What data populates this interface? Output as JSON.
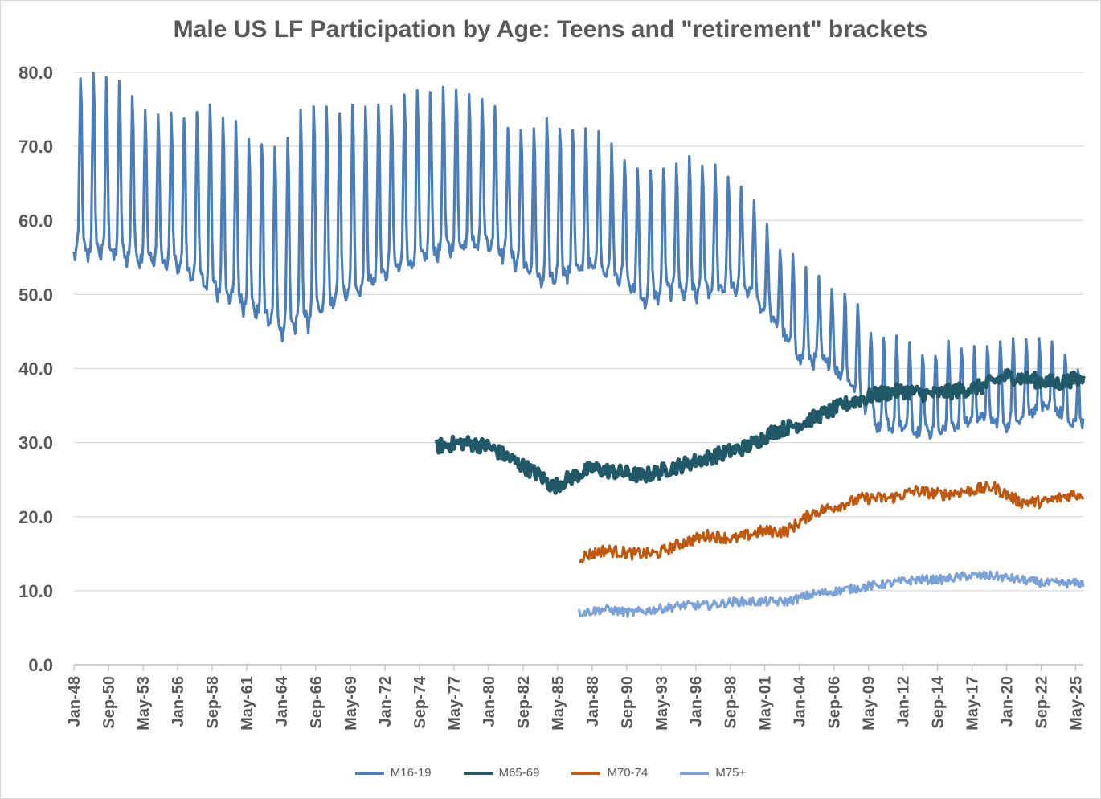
{
  "chart_data": {
    "type": "line",
    "title": "Male US LF Participation by Age: Teens and \"retirement\" brackets",
    "xlabel": "",
    "ylabel": "",
    "ylim": [
      0,
      80
    ],
    "y_ticks": [
      "0.0",
      "10.0",
      "20.0",
      "30.0",
      "40.0",
      "50.0",
      "60.0",
      "70.0",
      "80.0"
    ],
    "x_range": [
      "1948-01",
      "2025-12"
    ],
    "x_tick_labels": [
      "Jan-48",
      "Sep-50",
      "May-53",
      "Jan-56",
      "Sep-58",
      "May-61",
      "Jan-64",
      "Sep-66",
      "May-69",
      "Jan-72",
      "Sep-74",
      "May-77",
      "Jan-80",
      "Sep-82",
      "May-85",
      "Jan-88",
      "Sep-90",
      "May-93",
      "Jan-96",
      "Sep-98",
      "May-01",
      "Jan-04",
      "Sep-06",
      "May-09",
      "Jan-12",
      "Sep-14",
      "May-17",
      "Jan-20",
      "Sep-22",
      "May-25"
    ],
    "grid": true,
    "legend_position": "bottom",
    "series": [
      {
        "name": "M16-19",
        "color": "#4a7ebb",
        "start": "1948-01",
        "seasonal_amplitude_note": "strong summer peaks",
        "years": [
          1948,
          1950,
          1952,
          1954,
          1956,
          1958,
          1960,
          1962,
          1964,
          1966,
          1968,
          1970,
          1972,
          1974,
          1976,
          1978,
          1980,
          1982,
          1984,
          1986,
          1988,
          1990,
          1992,
          1994,
          1996,
          1998,
          2000,
          2002,
          2004,
          2006,
          2008,
          2010,
          2012,
          2014,
          2016,
          2018,
          2020,
          2022,
          2024,
          2025
        ],
        "trough": [
          55.0,
          55.0,
          54.5,
          54.0,
          53.0,
          50.5,
          49.0,
          47.0,
          44.5,
          45.5,
          48.0,
          50.0,
          52.0,
          53.5,
          55.0,
          56.0,
          56.0,
          54.0,
          51.0,
          52.0,
          53.0,
          52.0,
          48.5,
          50.0,
          49.5,
          50.0,
          50.0,
          46.0,
          41.0,
          40.5,
          37.5,
          32.0,
          31.5,
          31.0,
          32.0,
          33.0,
          32.0,
          34.0,
          34.0,
          32.0
        ],
        "peak": [
          80.0,
          79.0,
          78.0,
          74.0,
          74.0,
          76.0,
          73.5,
          71.0,
          69.0,
          76.0,
          75.0,
          75.0,
          75.5,
          77.0,
          77.0,
          78.0,
          77.0,
          72.0,
          73.0,
          73.0,
          72.0,
          69.0,
          66.0,
          68.0,
          69.0,
          66.0,
          64.0,
          57.0,
          54.0,
          51.0,
          50.0,
          44.0,
          44.0,
          42.0,
          43.5,
          42.0,
          44.0,
          43.5,
          43.0,
          40.0
        ]
      },
      {
        "name": "M65-69",
        "color": "#215968",
        "start": "1976-01",
        "years": [
          1976,
          1978,
          1980,
          1982,
          1984,
          1985,
          1986,
          1988,
          1990,
          1992,
          1994,
          1996,
          1998,
          2000,
          2002,
          2004,
          2006,
          2008,
          2010,
          2012,
          2014,
          2016,
          2018,
          2020,
          2022,
          2024,
          2025
        ],
        "values": [
          29.5,
          30.0,
          29.5,
          27.5,
          25.5,
          24.0,
          25.0,
          26.5,
          26.0,
          25.5,
          26.5,
          27.5,
          28.5,
          29.5,
          31.5,
          32.5,
          34.0,
          35.5,
          36.5,
          37.0,
          36.5,
          37.0,
          37.5,
          39.0,
          38.5,
          38.0,
          38.5
        ]
      },
      {
        "name": "M70-74",
        "color": "#c0590f",
        "start": "1987-01",
        "years": [
          1987,
          1989,
          1991,
          1993,
          1995,
          1997,
          1999,
          2001,
          2003,
          2005,
          2007,
          2009,
          2011,
          2013,
          2015,
          2017,
          2019,
          2021,
          2023,
          2025
        ],
        "values": [
          14.5,
          15.5,
          15.0,
          15.0,
          16.5,
          17.5,
          17.0,
          18.0,
          18.0,
          20.5,
          21.5,
          22.5,
          22.5,
          23.5,
          23.0,
          23.5,
          24.0,
          22.0,
          22.0,
          23.0
        ]
      },
      {
        "name": "M75+",
        "color": "#7ba2d8",
        "start": "1987-01",
        "years": [
          1987,
          1989,
          1991,
          1993,
          1995,
          1997,
          1999,
          2001,
          2003,
          2005,
          2007,
          2009,
          2011,
          2013,
          2015,
          2017,
          2019,
          2021,
          2023,
          2025
        ],
        "values": [
          7.0,
          7.5,
          7.0,
          7.5,
          8.0,
          8.0,
          8.5,
          8.5,
          8.5,
          9.5,
          10.0,
          10.5,
          11.0,
          11.5,
          11.5,
          12.0,
          12.0,
          11.5,
          11.0,
          11.0
        ]
      }
    ]
  }
}
